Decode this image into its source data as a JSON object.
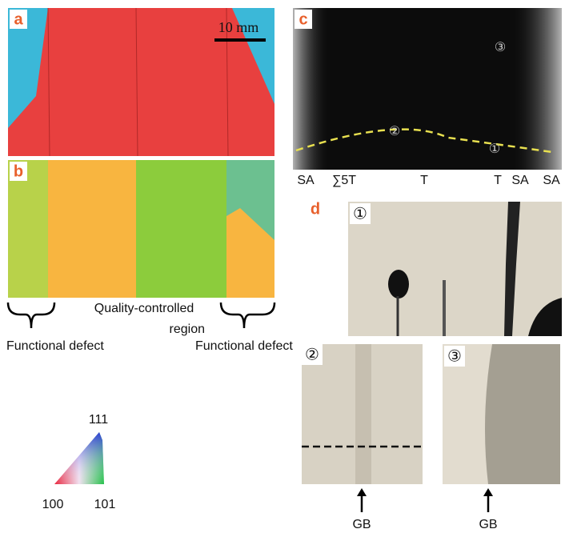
{
  "panels": {
    "a": {
      "label": "a",
      "scale_bar": "10 mm"
    },
    "b": {
      "label": "b",
      "region_label": [
        "Quality-controlled",
        "region"
      ],
      "defect_labels": [
        "Functional defect",
        "Functional defect"
      ]
    },
    "legend": {
      "corners": [
        "111",
        "100",
        "101"
      ]
    },
    "c": {
      "label": "c",
      "markers": [
        "③",
        "②",
        "①"
      ],
      "bottom_labels": [
        "SA",
        "∑5T",
        "T",
        "T",
        "SA",
        "SA"
      ]
    },
    "d": {
      "label": "d",
      "insets": [
        "①",
        "②",
        "③"
      ],
      "arrow_labels": [
        "GB",
        "GB"
      ]
    }
  }
}
